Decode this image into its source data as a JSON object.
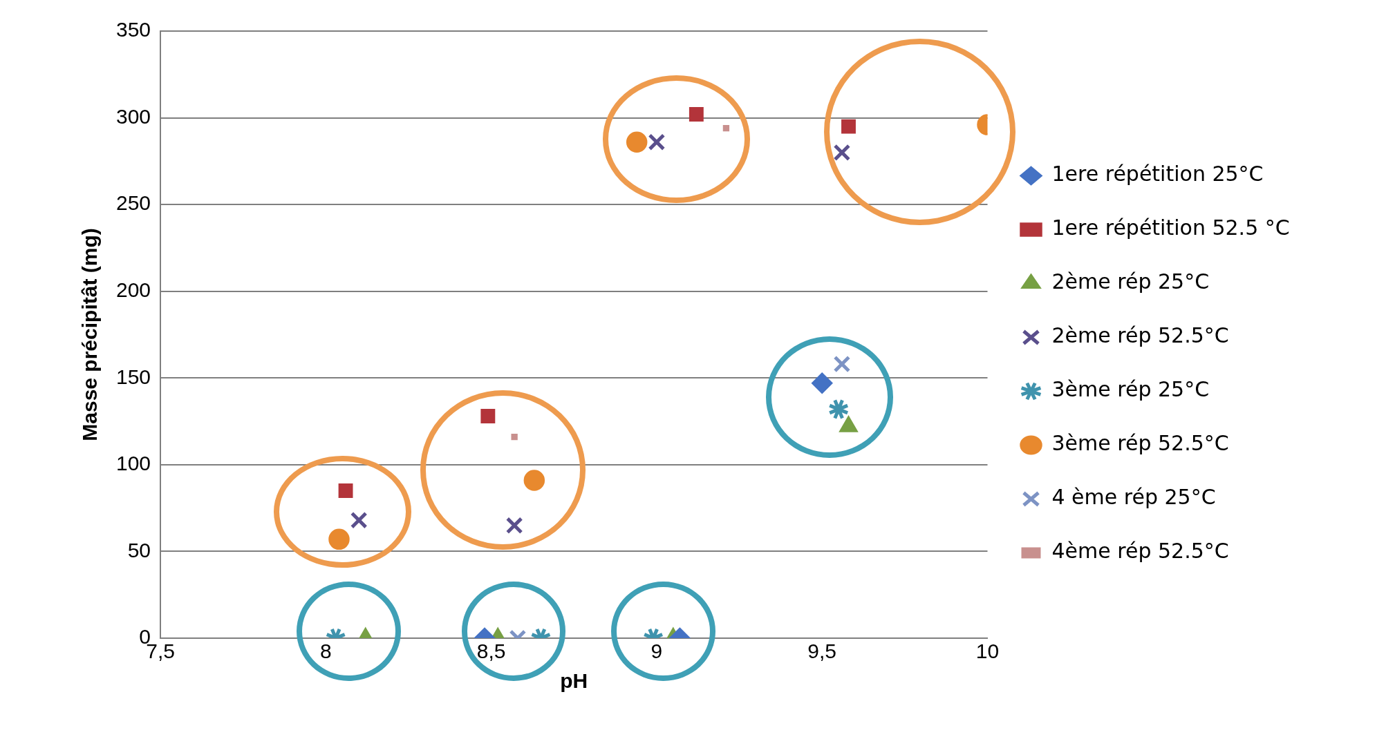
{
  "chart_data": {
    "type": "scatter",
    "xlabel": "pH",
    "ylabel": "Masse précipitât (mg)",
    "xlim": [
      7.5,
      10
    ],
    "xticks": [
      {
        "value": 7.5,
        "label": "7,5"
      },
      8,
      {
        "value": 8.5,
        "label": "8,5"
      },
      9,
      {
        "value": 9.5,
        "label": "9,5"
      },
      10
    ],
    "ylim": [
      0,
      350
    ],
    "yticks": [
      0,
      50,
      100,
      150,
      200,
      250,
      300,
      350
    ],
    "grid": "y",
    "legend": "right",
    "series": [
      {
        "name": "1ere répétition 25°C",
        "color": "#4472c4",
        "marker": "diamond",
        "x": [
          8.48,
          9.07,
          9.5
        ],
        "values": [
          0,
          0,
          147
        ]
      },
      {
        "name": "1ere répétition 52.5 °C",
        "color": "#b3343a",
        "marker": "square",
        "x": [
          8.06,
          8.49,
          9.12,
          9.58
        ],
        "values": [
          85,
          128,
          302,
          295
        ]
      },
      {
        "name": "2ème rép 25°C",
        "color": "#77a044",
        "marker": "triangle",
        "x": [
          8.12,
          8.52,
          9.05,
          9.58
        ],
        "values": [
          0,
          0,
          0,
          122
        ]
      },
      {
        "name": "2ème rép 52.5°C",
        "color": "#5a4f8c",
        "marker": "cross",
        "x": [
          8.1,
          8.57,
          9.0,
          9.56
        ],
        "values": [
          68,
          65,
          286,
          280
        ]
      },
      {
        "name": "3ème rép 25°C",
        "color": "#3f93ad",
        "marker": "cross",
        "x": [
          8.03,
          8.65,
          8.99,
          9.55
        ],
        "values": [
          0,
          0,
          0,
          132
        ]
      },
      {
        "name": "3ème rép 52.5°C",
        "color": "#e8892e",
        "marker": "circle",
        "x": [
          8.04,
          8.63,
          8.94,
          10
        ],
        "values": [
          57,
          91,
          286,
          296
        ]
      },
      {
        "name": "4 ème rép 25°C",
        "color": "#7d93c4",
        "marker": "cross",
        "x": [
          8.58,
          9.56
        ],
        "values": [
          0,
          158
        ]
      },
      {
        "name": "4ème rép 52.5°C",
        "color": "#c8908e",
        "marker": "square",
        "x": [
          8.57,
          9.21
        ],
        "values": [
          116,
          294
        ]
      }
    ]
  }
}
